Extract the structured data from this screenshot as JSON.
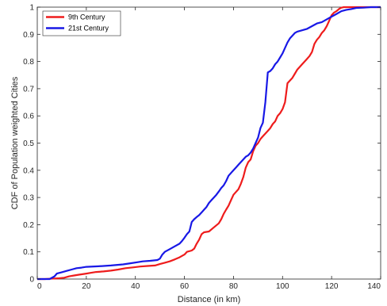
{
  "chart_data": {
    "type": "line",
    "title": "",
    "xlabel": "Distance (in km)",
    "ylabel": "CDF of Population weighted Cities",
    "xlim": [
      0,
      140
    ],
    "ylim": [
      0,
      1
    ],
    "xticks": [
      0,
      20,
      40,
      60,
      80,
      100,
      120,
      140
    ],
    "yticks": [
      0,
      0.1,
      0.2,
      0.3,
      0.4,
      0.5,
      0.6,
      0.7,
      0.8,
      0.9,
      1
    ],
    "grid": false,
    "legend_position": "top-left",
    "series": [
      {
        "name": "9th Century",
        "color": "#ee1c1c",
        "points": [
          [
            0,
            0
          ],
          [
            3,
            0
          ],
          [
            7,
            0.002
          ],
          [
            9,
            0.003
          ],
          [
            11,
            0.005
          ],
          [
            13,
            0.01
          ],
          [
            15,
            0.013
          ],
          [
            17,
            0.016
          ],
          [
            20,
            0.02
          ],
          [
            22,
            0.023
          ],
          [
            24,
            0.026
          ],
          [
            27,
            0.028
          ],
          [
            30,
            0.031
          ],
          [
            33,
            0.035
          ],
          [
            36,
            0.04
          ],
          [
            39,
            0.043
          ],
          [
            42,
            0.046
          ],
          [
            45,
            0.048
          ],
          [
            48,
            0.05
          ],
          [
            50,
            0.055
          ],
          [
            52,
            0.06
          ],
          [
            54,
            0.065
          ],
          [
            56,
            0.072
          ],
          [
            58,
            0.08
          ],
          [
            60,
            0.09
          ],
          [
            61,
            0.1
          ],
          [
            63,
            0.105
          ],
          [
            64,
            0.112
          ],
          [
            65,
            0.13
          ],
          [
            66,
            0.145
          ],
          [
            67,
            0.165
          ],
          [
            68,
            0.172
          ],
          [
            70,
            0.175
          ],
          [
            72,
            0.19
          ],
          [
            74,
            0.205
          ],
          [
            75,
            0.22
          ],
          [
            76,
            0.24
          ],
          [
            77,
            0.255
          ],
          [
            78,
            0.27
          ],
          [
            79,
            0.29
          ],
          [
            80,
            0.31
          ],
          [
            81,
            0.32
          ],
          [
            82,
            0.33
          ],
          [
            83,
            0.35
          ],
          [
            84,
            0.375
          ],
          [
            85,
            0.41
          ],
          [
            86,
            0.43
          ],
          [
            87,
            0.44
          ],
          [
            88,
            0.47
          ],
          [
            89,
            0.49
          ],
          [
            90,
            0.5
          ],
          [
            91,
            0.515
          ],
          [
            92,
            0.525
          ],
          [
            93,
            0.535
          ],
          [
            94,
            0.545
          ],
          [
            95,
            0.555
          ],
          [
            96,
            0.57
          ],
          [
            97,
            0.58
          ],
          [
            98,
            0.6
          ],
          [
            99,
            0.61
          ],
          [
            100,
            0.625
          ],
          [
            101,
            0.65
          ],
          [
            102,
            0.72
          ],
          [
            103,
            0.73
          ],
          [
            104,
            0.74
          ],
          [
            105,
            0.755
          ],
          [
            106,
            0.77
          ],
          [
            107,
            0.78
          ],
          [
            108,
            0.79
          ],
          [
            109,
            0.8
          ],
          [
            110,
            0.81
          ],
          [
            111,
            0.82
          ],
          [
            112,
            0.835
          ],
          [
            113,
            0.865
          ],
          [
            114,
            0.88
          ],
          [
            115,
            0.89
          ],
          [
            116,
            0.905
          ],
          [
            117,
            0.915
          ],
          [
            118,
            0.93
          ],
          [
            119,
            0.95
          ],
          [
            120,
            0.97
          ],
          [
            121,
            0.98
          ],
          [
            122,
            0.985
          ],
          [
            123,
            0.993
          ],
          [
            124,
            0.998
          ],
          [
            125,
            1
          ],
          [
            140,
            1
          ]
        ]
      },
      {
        "name": "21st Century",
        "color": "#1818e6",
        "points": [
          [
            0,
            0
          ],
          [
            5,
            0
          ],
          [
            7,
            0.01
          ],
          [
            8,
            0.02
          ],
          [
            10,
            0.025
          ],
          [
            12,
            0.03
          ],
          [
            14,
            0.035
          ],
          [
            16,
            0.04
          ],
          [
            18,
            0.042
          ],
          [
            20,
            0.045
          ],
          [
            25,
            0.047
          ],
          [
            30,
            0.05
          ],
          [
            35,
            0.054
          ],
          [
            38,
            0.058
          ],
          [
            41,
            0.062
          ],
          [
            43,
            0.065
          ],
          [
            46,
            0.067
          ],
          [
            49,
            0.07
          ],
          [
            50,
            0.075
          ],
          [
            51,
            0.09
          ],
          [
            52,
            0.1
          ],
          [
            54,
            0.11
          ],
          [
            56,
            0.12
          ],
          [
            58,
            0.13
          ],
          [
            59,
            0.14
          ],
          [
            60,
            0.152
          ],
          [
            61,
            0.165
          ],
          [
            62,
            0.175
          ],
          [
            63,
            0.21
          ],
          [
            64,
            0.22
          ],
          [
            65,
            0.228
          ],
          [
            66,
            0.235
          ],
          [
            67,
            0.245
          ],
          [
            68,
            0.255
          ],
          [
            69,
            0.265
          ],
          [
            70,
            0.28
          ],
          [
            71,
            0.29
          ],
          [
            72,
            0.3
          ],
          [
            73,
            0.31
          ],
          [
            74,
            0.322
          ],
          [
            75,
            0.335
          ],
          [
            76,
            0.345
          ],
          [
            77,
            0.36
          ],
          [
            78,
            0.38
          ],
          [
            79,
            0.39
          ],
          [
            80,
            0.4
          ],
          [
            81,
            0.41
          ],
          [
            82,
            0.42
          ],
          [
            83,
            0.43
          ],
          [
            84,
            0.44
          ],
          [
            85,
            0.45
          ],
          [
            86,
            0.455
          ],
          [
            87,
            0.465
          ],
          [
            88,
            0.48
          ],
          [
            89,
            0.5
          ],
          [
            90,
            0.52
          ],
          [
            91,
            0.555
          ],
          [
            92,
            0.575
          ],
          [
            93,
            0.65
          ],
          [
            94,
            0.76
          ],
          [
            95,
            0.765
          ],
          [
            96,
            0.775
          ],
          [
            97,
            0.79
          ],
          [
            98,
            0.8
          ],
          [
            99,
            0.815
          ],
          [
            100,
            0.83
          ],
          [
            101,
            0.85
          ],
          [
            102,
            0.87
          ],
          [
            103,
            0.885
          ],
          [
            104,
            0.895
          ],
          [
            105,
            0.905
          ],
          [
            106,
            0.91
          ],
          [
            108,
            0.915
          ],
          [
            110,
            0.92
          ],
          [
            112,
            0.93
          ],
          [
            114,
            0.94
          ],
          [
            116,
            0.945
          ],
          [
            118,
            0.955
          ],
          [
            120,
            0.965
          ],
          [
            122,
            0.975
          ],
          [
            124,
            0.985
          ],
          [
            126,
            0.99
          ],
          [
            128,
            0.993
          ],
          [
            130,
            0.997
          ],
          [
            133,
            0.998
          ],
          [
            136,
            1
          ],
          [
            140,
            1
          ]
        ]
      }
    ]
  }
}
